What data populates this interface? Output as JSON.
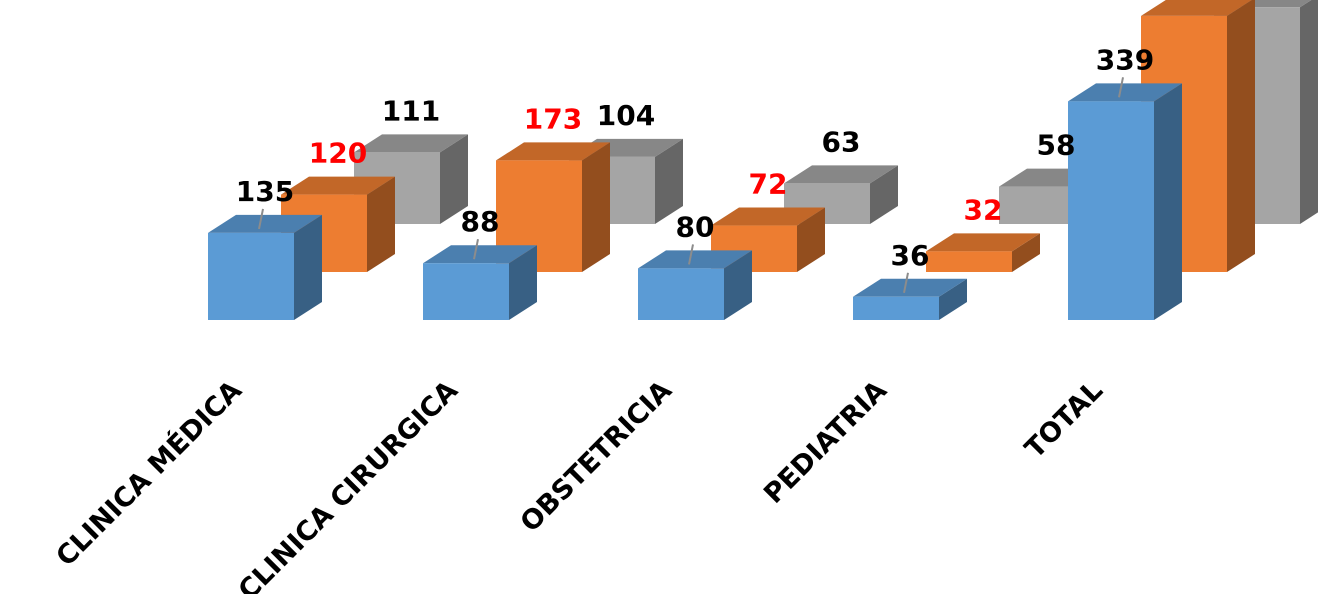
{
  "chart_data": {
    "type": "bar",
    "style": "3d-column",
    "categories": [
      "CLINICA MÉDICA",
      "CLINICA CIRURGICA",
      "OBSTETRICIA",
      "PEDIATRIA",
      "TOTAL"
    ],
    "series": [
      {
        "values": [
          135,
          88,
          80,
          36,
          339
        ],
        "color": "#5B9BD5",
        "label_color": "#000000"
      },
      {
        "values": [
          120,
          173,
          72,
          32,
          397
        ],
        "color": "#ED7D31",
        "label_color": "#FF0000"
      },
      {
        "values": [
          111,
          104,
          63,
          58,
          336
        ],
        "color": "#A5A5A5",
        "label_color": "#000000"
      }
    ],
    "title": "",
    "xlabel": "",
    "ylabel": "",
    "ylim": [
      0,
      400
    ],
    "grid": false,
    "legend": "none",
    "data_labels": true
  }
}
